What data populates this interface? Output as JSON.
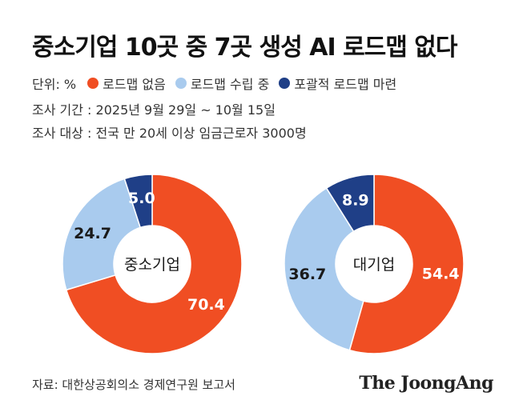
{
  "title": "중소기업 10곳 중 7곳 생성 AI 로드맵 없다",
  "legend": {
    "unit": "단위: %",
    "items": [
      {
        "label": "로드맵 없음",
        "color": "#f04e23"
      },
      {
        "label": "로드맵 수립 중",
        "color": "#a9cbee"
      },
      {
        "label": "포괄적 로드맵 마련",
        "color": "#1f3f87"
      }
    ]
  },
  "meta": {
    "period": "조사 기간 : 2025년 9월 29일 ~ 10월 15일",
    "target": "조사 대상 : 전국 만 20세 이상 임금근로자 3000명"
  },
  "chart_data": [
    {
      "type": "pie",
      "center_label": "중소기업",
      "categories": [
        "로드맵 없음",
        "로드맵 수립 중",
        "포괄적 로드맵 마련"
      ],
      "values": [
        70.4,
        24.7,
        5.0
      ],
      "value_labels": [
        "70.4",
        "24.7",
        "5.0"
      ],
      "colors": [
        "#f04e23",
        "#a9cbee",
        "#1f3f87"
      ]
    },
    {
      "type": "pie",
      "center_label": "대기업",
      "categories": [
        "로드맵 없음",
        "로드맵 수립 중",
        "포괄적 로드맵 마련"
      ],
      "values": [
        54.4,
        36.7,
        8.9
      ],
      "value_labels": [
        "54.4",
        "36.7",
        "8.9"
      ],
      "colors": [
        "#f04e23",
        "#a9cbee",
        "#1f3f87"
      ]
    }
  ],
  "source": "자료: 대한상공회의소 경제연구원 보고서",
  "brand": "The JoongAng"
}
